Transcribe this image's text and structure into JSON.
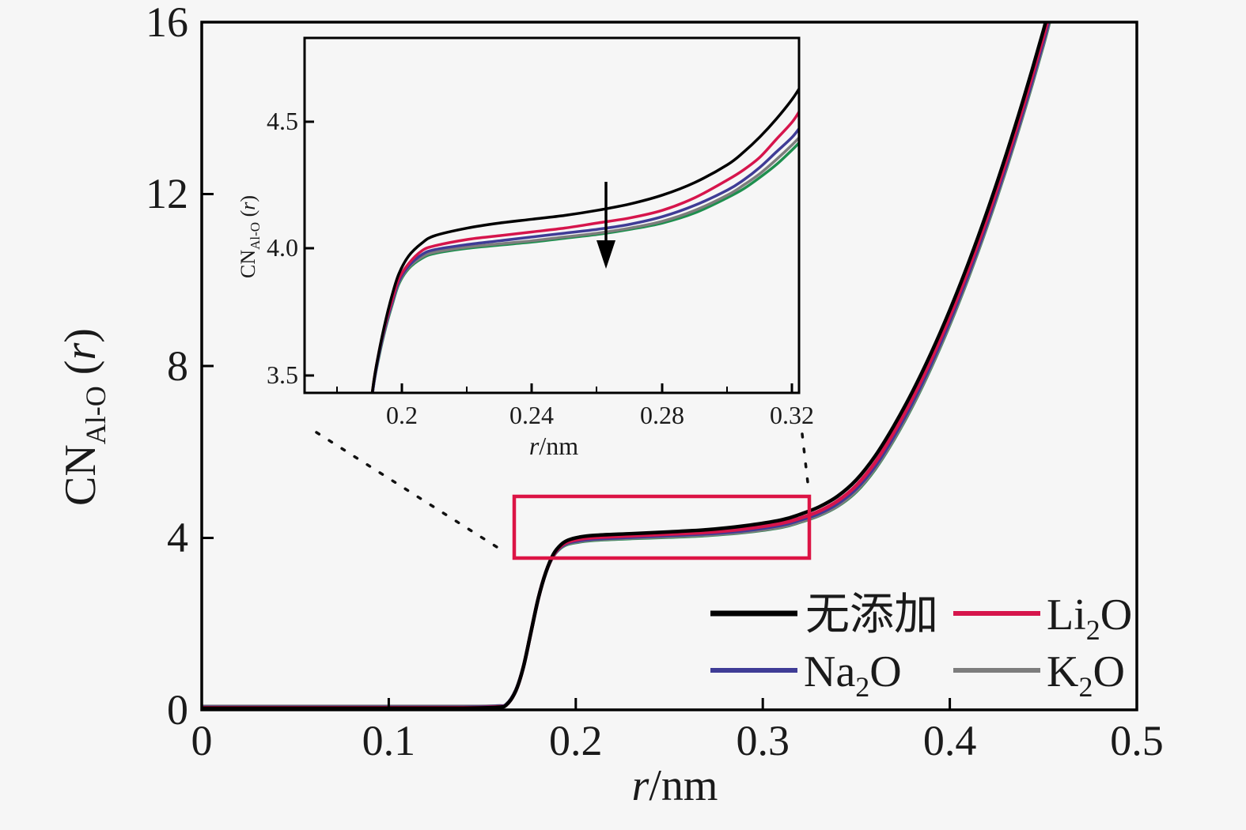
{
  "page": {
    "background": "#f6f6f6",
    "description": "Coordination number CN(Al-O) versus distance r with zoomed inset"
  },
  "legend": {
    "items": [
      {
        "label": "无添加",
        "base": "无添加",
        "sub": "",
        "tail": "",
        "color": "#000000"
      },
      {
        "label": "Li2O",
        "base": "Li",
        "sub": "2",
        "tail": "O",
        "color": "#d6154c"
      },
      {
        "label": "Na2O",
        "base": "Na",
        "sub": "2",
        "tail": "O",
        "color": "#3f3c96"
      },
      {
        "label": "K2O",
        "base": "K",
        "sub": "2",
        "tail": "O",
        "color": "#7d7d7d"
      }
    ]
  },
  "annotations": {
    "zoom_rect": {
      "x": [
        0.167,
        0.325
      ],
      "y": [
        3.53,
        4.96
      ],
      "color": "#dc1445",
      "meaning": "region enlarged in inset"
    },
    "arrow": {
      "direction": "down",
      "color": "#000000",
      "meaning": "CN decreases from 无添加 to additive systems"
    },
    "connectors": "dotted lines linking inset to zoom rectangle"
  },
  "chart_data": [
    {
      "type": "line",
      "name": "main",
      "xlabel_var": "r",
      "xlabel_rest": "/nm",
      "ylabel_base": "CN",
      "ylabel_sub": "Al-O",
      "ylabel_open": " (",
      "ylabel_var": "r",
      "ylabel_close": ")",
      "xlim": [
        0,
        0.5
      ],
      "ylim": [
        0,
        16
      ],
      "x_tick_labels": [
        "0",
        "0.1",
        "0.2",
        "0.3",
        "0.4",
        "0.5"
      ],
      "y_tick_labels": [
        "0",
        "4",
        "8",
        "12",
        "16"
      ],
      "grid": false,
      "legend_position": "lower right",
      "x": [
        0,
        0.05,
        0.1,
        0.14,
        0.158,
        0.163,
        0.168,
        0.172,
        0.176,
        0.18,
        0.184,
        0.188,
        0.192,
        0.196,
        0.202,
        0.21,
        0.23,
        0.25,
        0.27,
        0.29,
        0.31,
        0.32,
        0.33,
        0.34,
        0.35,
        0.36,
        0.37,
        0.38,
        0.39,
        0.4,
        0.41,
        0.42,
        0.43,
        0.44,
        0.45,
        0.456
      ],
      "series": [
        {
          "name": "无添加",
          "color": "#000000",
          "y": [
            0.04,
            0.04,
            0.04,
            0.04,
            0.06,
            0.12,
            0.45,
            1.0,
            1.8,
            2.6,
            3.2,
            3.62,
            3.84,
            3.95,
            4.02,
            4.06,
            4.1,
            4.14,
            4.19,
            4.28,
            4.42,
            4.55,
            4.72,
            4.97,
            5.35,
            5.9,
            6.6,
            7.4,
            8.3,
            9.3,
            10.4,
            11.6,
            12.9,
            14.3,
            15.8,
            16.8
          ]
        },
        {
          "name": "Li2O",
          "color": "#d6154c",
          "y": [
            0.05,
            0.05,
            0.05,
            0.05,
            0.07,
            0.12,
            0.45,
            1.0,
            1.8,
            2.6,
            3.2,
            3.6,
            3.81,
            3.91,
            3.97,
            4.01,
            4.05,
            4.09,
            4.13,
            4.21,
            4.34,
            4.46,
            4.62,
            4.86,
            5.22,
            5.75,
            6.45,
            7.25,
            8.15,
            9.15,
            10.25,
            11.45,
            12.75,
            14.15,
            15.65,
            16.65
          ]
        },
        {
          "name": "Na2O",
          "color": "#3f3c96",
          "y": [
            0.06,
            0.06,
            0.06,
            0.06,
            0.08,
            0.13,
            0.46,
            1.0,
            1.8,
            2.6,
            3.2,
            3.59,
            3.79,
            3.89,
            3.94,
            3.98,
            4.02,
            4.06,
            4.1,
            4.17,
            4.3,
            4.42,
            4.57,
            4.8,
            5.15,
            5.67,
            6.36,
            7.15,
            8.05,
            9.05,
            10.15,
            11.35,
            12.65,
            14.05,
            15.55,
            16.55
          ]
        },
        {
          "name": "K2O",
          "color": "#7d7d7d",
          "y": [
            0.08,
            0.08,
            0.08,
            0.08,
            0.09,
            0.13,
            0.46,
            1.0,
            1.8,
            2.6,
            3.2,
            3.58,
            3.78,
            3.87,
            3.92,
            3.96,
            4.0,
            4.03,
            4.07,
            4.14,
            4.26,
            4.38,
            4.53,
            4.75,
            5.1,
            5.62,
            6.3,
            7.09,
            7.99,
            8.99,
            10.09,
            11.29,
            12.59,
            13.99,
            15.49,
            16.49
          ]
        },
        {
          "name": "green-unlabeled",
          "color": "#1e8f4e",
          "y": [
            0.07,
            0.07,
            0.07,
            0.07,
            0.08,
            0.13,
            0.46,
            1.0,
            1.8,
            2.6,
            3.2,
            3.58,
            3.77,
            3.86,
            3.91,
            3.95,
            3.99,
            4.02,
            4.06,
            4.13,
            4.25,
            4.37,
            4.52,
            4.74,
            5.08,
            5.6,
            6.28,
            7.07,
            7.97,
            8.97,
            10.07,
            11.27,
            12.57,
            13.97,
            15.47,
            16.47
          ]
        }
      ]
    },
    {
      "type": "line",
      "name": "inset",
      "xlabel_var": "r",
      "xlabel_rest": "/nm",
      "ylabel_base": "CN",
      "ylabel_sub": "Al-O",
      "ylabel_open": " (",
      "ylabel_var": "r",
      "ylabel_close": ")",
      "xlim": [
        0.17,
        0.322
      ],
      "ylim": [
        3.43,
        4.83
      ],
      "x_tick_labels": [
        "0.2",
        "0.24",
        "0.28",
        "0.32"
      ],
      "y_tick_labels": [
        "3.5",
        "4.0",
        "4.5"
      ],
      "grid": false,
      "x": [
        0.186,
        0.189,
        0.191,
        0.193,
        0.195,
        0.197,
        0.199,
        0.202,
        0.206,
        0.21,
        0.22,
        0.23,
        0.24,
        0.25,
        0.26,
        0.27,
        0.28,
        0.29,
        0.3,
        0.305,
        0.31,
        0.315,
        0.32,
        0.323
      ],
      "series": [
        {
          "name": "无添加",
          "color": "#000000",
          "y": [
            2.7,
            3.2,
            3.45,
            3.6,
            3.72,
            3.82,
            3.9,
            3.97,
            4.02,
            4.05,
            4.08,
            4.1,
            4.115,
            4.13,
            4.15,
            4.175,
            4.21,
            4.26,
            4.33,
            4.38,
            4.44,
            4.51,
            4.59,
            4.65
          ]
        },
        {
          "name": "Li2O",
          "color": "#d6154c",
          "y": [
            2.7,
            3.2,
            3.45,
            3.6,
            3.71,
            3.8,
            3.88,
            3.94,
            3.99,
            4.01,
            4.035,
            4.05,
            4.065,
            4.08,
            4.1,
            4.12,
            4.15,
            4.2,
            4.27,
            4.31,
            4.36,
            4.43,
            4.5,
            4.56
          ]
        },
        {
          "name": "Na2O",
          "color": "#3f3c96",
          "y": [
            2.7,
            3.2,
            3.44,
            3.59,
            3.7,
            3.79,
            3.87,
            3.93,
            3.975,
            3.995,
            4.015,
            4.03,
            4.045,
            4.06,
            4.075,
            4.095,
            4.125,
            4.17,
            4.23,
            4.27,
            4.32,
            4.38,
            4.44,
            4.49
          ]
        },
        {
          "name": "K2O",
          "color": "#7d7d7d",
          "y": [
            2.7,
            3.2,
            3.44,
            3.585,
            3.695,
            3.785,
            3.865,
            3.925,
            3.965,
            3.985,
            4.005,
            4.018,
            4.03,
            4.045,
            4.06,
            4.08,
            4.107,
            4.15,
            4.21,
            4.25,
            4.295,
            4.35,
            4.41,
            4.45
          ]
        },
        {
          "name": "green-unlabeled",
          "color": "#1e8f4e",
          "y": [
            2.7,
            3.2,
            3.44,
            3.58,
            3.69,
            3.78,
            3.86,
            3.92,
            3.96,
            3.98,
            4.0,
            4.013,
            4.025,
            4.04,
            4.055,
            4.075,
            4.1,
            4.14,
            4.2,
            4.235,
            4.28,
            4.33,
            4.39,
            4.43
          ]
        }
      ]
    }
  ]
}
